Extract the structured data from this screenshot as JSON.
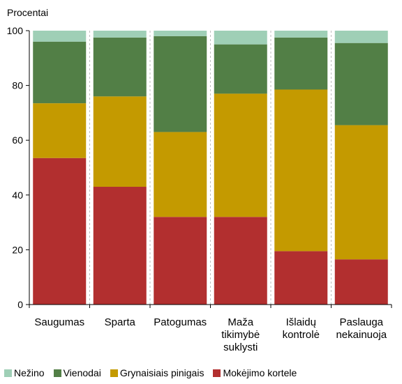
{
  "chart_data": {
    "type": "bar",
    "stacked": true,
    "ylabel": "Procentai",
    "ylim": [
      0,
      100
    ],
    "yticks": [
      0,
      20,
      40,
      60,
      80,
      100
    ],
    "categories": [
      [
        "Saugumas"
      ],
      [
        "Sparta"
      ],
      [
        "Patogumas"
      ],
      [
        "Maža",
        "tikimybė",
        "suklysti"
      ],
      [
        "Išlaidų",
        "kontrolė"
      ],
      [
        "Paslauga",
        "nekainuoja"
      ]
    ],
    "series": [
      {
        "name": "Mokėjimo kortele",
        "color": "#b22f2f",
        "values": [
          53.5,
          43,
          32,
          32,
          19.5,
          16.5
        ]
      },
      {
        "name": "Grynaisiais pinigais",
        "color": "#c49a00",
        "values": [
          20,
          33,
          31,
          45,
          59,
          49
        ]
      },
      {
        "name": "Vienodai",
        "color": "#527f46",
        "values": [
          22.5,
          21.5,
          35,
          18,
          19,
          30
        ]
      },
      {
        "name": "Nežino",
        "color": "#9fcfb6",
        "values": [
          4,
          2.5,
          2,
          5,
          2.5,
          4.5
        ]
      }
    ],
    "legend_order": [
      "Nežino",
      "Vienodai",
      "Grynaisiais pinigais",
      "Mokėjimo kortele"
    ],
    "legend_position": "bottom",
    "grid": "vertical-dashed"
  }
}
